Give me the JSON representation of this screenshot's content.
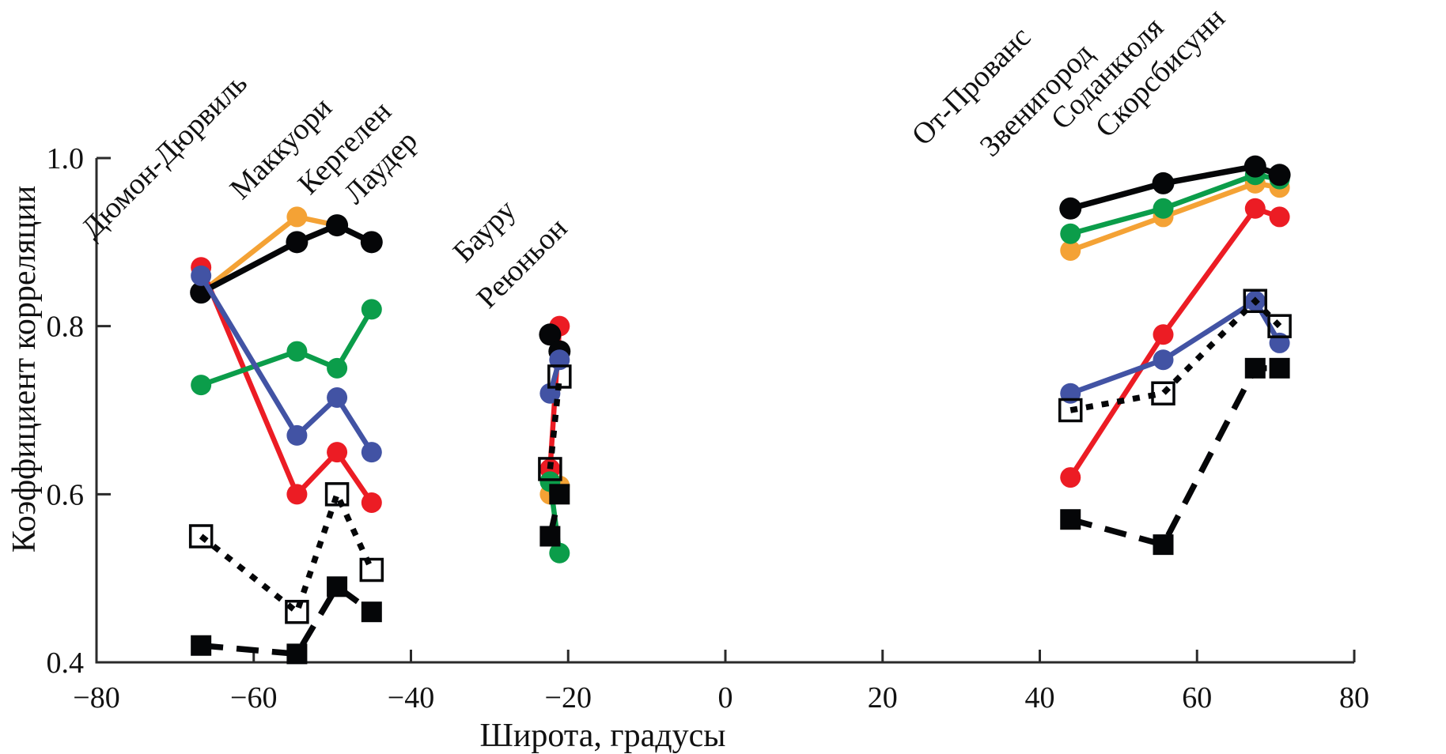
{
  "chart_data": {
    "type": "line",
    "title": "",
    "xlabel": "Широта, градусы",
    "ylabel": "Коэффициент корреляции",
    "xlim": [
      -80,
      80
    ],
    "ylim": [
      0.4,
      1.0
    ],
    "grid": false,
    "legend": "none",
    "x_ticks": [
      -80,
      -60,
      -40,
      -20,
      0,
      20,
      40,
      60,
      80
    ],
    "y_ticks": [
      0.4,
      0.6,
      0.8,
      1.0
    ],
    "stations": [
      {
        "name": "Дюмон-Дюрвиль",
        "lat": -66.7
      },
      {
        "name": "Маккуори",
        "lat": -54.5
      },
      {
        "name": "Кергелен",
        "lat": -49.4
      },
      {
        "name": "Лаудер",
        "lat": -45.0
      },
      {
        "name": "Бауру",
        "lat": -22.3
      },
      {
        "name": "Реюньон",
        "lat": -21.1
      },
      {
        "name": "От-Прованс",
        "lat": 43.9
      },
      {
        "name": "Звенигород",
        "lat": 55.7
      },
      {
        "name": "Соданкюля",
        "lat": 67.4
      },
      {
        "name": "Скорсбисунн",
        "lat": 70.5
      }
    ],
    "clusters": [
      [
        0,
        1,
        2,
        3
      ],
      [
        4,
        5
      ],
      [
        6,
        7,
        8,
        9
      ]
    ],
    "series": [
      {
        "name": "orange-circles",
        "color": "#F4A235",
        "line": "solid",
        "marker": "circle",
        "values": [
          0.84,
          0.93,
          0.92,
          null,
          0.6,
          0.61,
          0.89,
          0.93,
          0.97,
          0.965
        ]
      },
      {
        "name": "red-circles",
        "color": "#EC1C24",
        "line": "solid",
        "marker": "circle",
        "values": [
          0.87,
          0.6,
          0.65,
          0.59,
          0.63,
          0.8,
          0.62,
          0.79,
          0.94,
          0.93
        ]
      },
      {
        "name": "green-circles",
        "color": "#0B9D4A",
        "line": "solid",
        "marker": "circle",
        "values": [
          0.73,
          0.77,
          0.75,
          0.82,
          0.615,
          0.53,
          0.91,
          0.94,
          0.98,
          0.975
        ]
      },
      {
        "name": "black-circles",
        "color": "#050608",
        "line": "solid",
        "marker": "circle",
        "values": [
          0.84,
          0.9,
          0.92,
          0.9,
          0.79,
          0.77,
          0.94,
          0.97,
          0.99,
          0.98
        ]
      },
      {
        "name": "blue-circles",
        "color": "#4253A4",
        "line": "solid",
        "marker": "circle",
        "values": [
          0.86,
          0.67,
          0.715,
          0.65,
          0.72,
          0.76,
          0.72,
          0.76,
          0.83,
          0.78
        ]
      },
      {
        "name": "black-filled-squares",
        "color": "#050608",
        "line": "dashed",
        "marker": "filled-square",
        "values": [
          0.42,
          0.41,
          0.49,
          0.46,
          0.55,
          0.6,
          0.57,
          0.54,
          0.75,
          0.75
        ]
      },
      {
        "name": "black-open-squares",
        "color": "#050608",
        "line": "dotted",
        "marker": "open-square",
        "values": [
          0.55,
          0.46,
          0.6,
          0.51,
          0.63,
          0.74,
          0.7,
          0.72,
          0.83,
          0.8
        ]
      }
    ]
  }
}
